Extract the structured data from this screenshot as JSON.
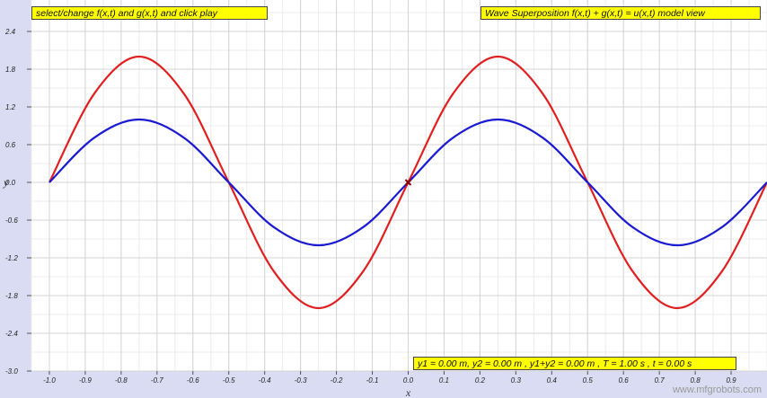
{
  "panel": {
    "instruction": "select/change f(x,t) and g(x,t) and click play",
    "title": "Wave Superposition f(x,t) + g(x,t) = u(x,t) model view",
    "status": "y1 = 0.00 m, y2 = 0.00 m , y1+y2 = 0.00 m , T = 1.00 s , t = 0.00 s"
  },
  "watermark": "www.mfgrobots.com",
  "chart_data": {
    "type": "line",
    "xlabel": "x",
    "ylabel": "y",
    "xlim": [
      -1.05,
      1.0
    ],
    "ylim": [
      -3.0,
      2.9
    ],
    "grid": true,
    "x_ticks": [
      "-1.0",
      "-0.9",
      "-0.8",
      "-0.7",
      "-0.6",
      "-0.5",
      "-0.4",
      "-0.3",
      "-0.2",
      "-0.1",
      "0.0",
      "0.1",
      "0.2",
      "0.3",
      "0.4",
      "0.5",
      "0.6",
      "0.7",
      "0.8",
      "0.9"
    ],
    "y_ticks": [
      "2.4",
      "1.8",
      "1.2",
      "0.6",
      "0.0",
      "-0.6",
      "-1.2",
      "-1.8",
      "-2.4",
      "-3.0"
    ],
    "series": [
      {
        "color": "#e02020",
        "x": [
          -1.0,
          -0.875,
          -0.75,
          -0.625,
          -0.5,
          -0.375,
          -0.25,
          -0.125,
          0.0,
          0.125,
          0.25,
          0.375,
          0.5,
          0.625,
          0.75,
          0.875,
          1.0
        ],
        "y": [
          0.0,
          1.41,
          2.0,
          1.41,
          0.0,
          -1.41,
          -2.0,
          -1.41,
          0.0,
          1.41,
          2.0,
          1.41,
          0.0,
          -1.41,
          -2.0,
          -1.41,
          0.0
        ]
      },
      {
        "color": "#1a1ad0",
        "x": [
          -1.0,
          -0.875,
          -0.75,
          -0.625,
          -0.5,
          -0.375,
          -0.25,
          -0.125,
          0.0,
          0.125,
          0.25,
          0.375,
          0.5,
          0.625,
          0.75,
          0.875,
          1.0
        ],
        "y": [
          0.0,
          0.71,
          1.0,
          0.71,
          0.0,
          -0.71,
          -1.0,
          -0.71,
          0.0,
          0.71,
          1.0,
          0.71,
          0.0,
          -0.71,
          -1.0,
          -0.71,
          0.0
        ]
      }
    ],
    "marker": {
      "x": 0.0,
      "y": 0.0,
      "color": "#8b0000"
    }
  }
}
